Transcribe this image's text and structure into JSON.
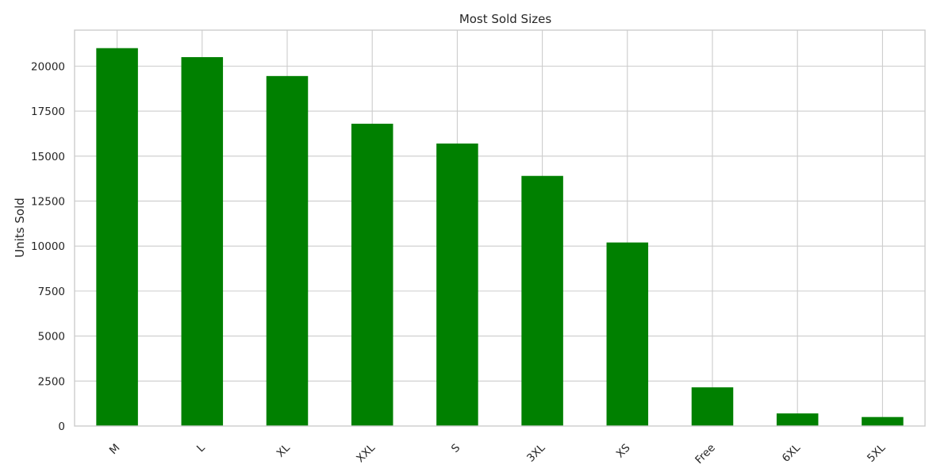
{
  "chart_data": {
    "type": "bar",
    "title": "Most Sold Sizes",
    "xlabel": "",
    "ylabel": "Units Sold",
    "categories": [
      "M",
      "L",
      "XL",
      "XXL",
      "S",
      "3XL",
      "XS",
      "Free",
      "6XL",
      "5XL"
    ],
    "values": [
      21000,
      20500,
      19450,
      16800,
      15700,
      13900,
      10200,
      2150,
      700,
      500
    ],
    "ylim": [
      0,
      22000
    ],
    "yticks": [
      0,
      2500,
      5000,
      7500,
      10000,
      12500,
      15000,
      17500,
      20000
    ],
    "bar_color": "#008000",
    "grid": true,
    "xtick_rotation": 45
  }
}
